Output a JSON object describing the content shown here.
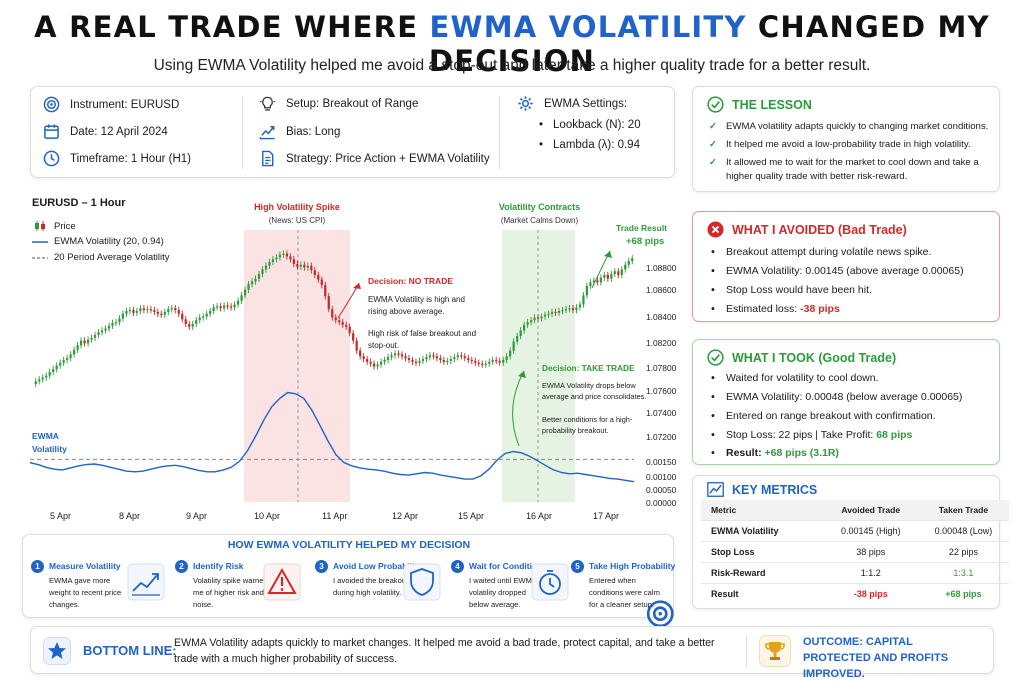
{
  "title": {
    "pre": "A REAL TRADE WHERE ",
    "highlight": "EWMA VOLATILITY",
    "post": " CHANGED MY DECISION"
  },
  "subtitle": "Using EWMA Volatility helped me avoid a stop-out and later take a higher quality trade for a better result.",
  "info": {
    "instrument": "Instrument: EURUSD",
    "date": "Date: 12 April 2024",
    "timeframe": "Timeframe: 1 Hour (H1)",
    "setup": "Setup: Breakout of Range",
    "bias": "Bias: Long",
    "strategy": "Strategy: Price Action + EWMA Volatility",
    "settings_title": "EWMA Settings:",
    "lookback": "Lookback (N): 20",
    "lambda": "Lambda (λ): 0.94"
  },
  "chart": {
    "title": "EURUSD – 1 Hour",
    "legend": {
      "price": "Price",
      "ewma": "EWMA Volatility (20, 0.94)",
      "avg": "20 Period Average Volatility"
    },
    "ewma_side_label": "EWMA Volatility",
    "spike_title": "High Volatility Spike",
    "spike_sub": "(News: US CPI)",
    "contract_title": "Volatility Contracts",
    "contract_sub": "(Market Calms Down)",
    "trade_result_1": "Trade Result",
    "trade_result_2": "+68 pips",
    "no_trade_title": "Decision: NO TRADE",
    "no_trade_text1": "EWMA Volatility is high and rising above average.",
    "no_trade_text2": "High risk of false breakout and stop-out.",
    "take_title": "Decision: TAKE TRADE",
    "take_text1": "EWMA Volatility drops below average and price consolidates.",
    "take_text2": "Better conditions for a high-probability breakout.",
    "x_labels": [
      "5 Apr",
      "8 Apr",
      "9 Apr",
      "10 Apr",
      "11 Apr",
      "12 Apr",
      "15 Apr",
      "16 Apr",
      "17 Apr"
    ],
    "price_labels": [
      "1.08800",
      "1.08600",
      "1.08400",
      "1.08200",
      "1.07800",
      "1.07600",
      "1.07400",
      "1.07200"
    ],
    "vol_labels": [
      "0.00150",
      "0.00100",
      "0.00050",
      "0.00000"
    ]
  },
  "chart_data": {
    "type": "line",
    "title": "EURUSD – 1 Hour",
    "x_ticks": [
      "5 Apr",
      "8 Apr",
      "9 Apr",
      "10 Apr",
      "11 Apr",
      "12 Apr",
      "15 Apr",
      "16 Apr",
      "17 Apr"
    ],
    "price_tick_labels": [
      "1.08800",
      "1.08600",
      "1.08400",
      "1.08200",
      "1.07800",
      "1.07600",
      "1.07400",
      "1.07200"
    ],
    "vol_tick_labels": [
      "0.00150",
      "0.00100",
      "0.00050",
      "0.00000"
    ],
    "series": [
      {
        "name": "Price",
        "kind": "candlestick",
        "close": [
          0.3,
          0.5,
          0.7,
          0.9,
          1.3,
          1.6,
          2.0,
          2.3,
          2.6,
          2.8,
          3.2,
          3.7,
          4.2,
          4.7,
          4.4,
          4.8,
          5.0,
          5.3,
          5.6,
          5.8,
          6.0,
          6.3,
          6.6,
          6.7,
          7.1,
          7.6,
          7.9,
          8.0,
          7.7,
          7.9,
          8.2,
          8.0,
          8.1,
          8.0,
          7.8,
          7.6,
          7.5,
          7.8,
          8.1,
          8.2,
          8.0,
          7.6,
          7.0,
          6.5,
          6.2,
          6.5,
          6.9,
          7.2,
          7.3,
          7.6,
          7.9,
          8.3,
          8.4,
          8.2,
          8.5,
          8.4,
          8.3,
          8.6,
          9.0,
          9.6,
          10.2,
          10.8,
          11.1,
          11.4,
          11.9,
          12.4,
          12.8,
          13.2,
          13.5,
          13.7,
          14.0,
          14.1,
          13.8,
          13.5,
          13.0,
          12.7,
          12.9,
          12.6,
          12.8,
          12.3,
          11.8,
          11.3,
          10.7,
          9.5,
          8.1,
          7.2,
          6.9,
          6.7,
          6.4,
          6.2,
          5.5,
          4.7,
          3.6,
          3.0,
          2.7,
          2.4,
          2.2,
          1.9,
          2.1,
          2.4,
          2.6,
          2.9,
          3.1,
          3.3,
          3.2,
          3.0,
          2.8,
          2.6,
          2.4,
          2.3,
          2.5,
          2.7,
          2.9,
          3.1,
          3.0,
          2.8,
          2.6,
          2.4,
          2.5,
          2.7,
          2.9,
          3.1,
          3.0,
          2.8,
          2.6,
          2.5,
          2.3,
          2.2,
          2.1,
          2.2,
          2.4,
          2.6,
          2.5,
          2.3,
          2.6,
          3.0,
          3.6,
          4.6,
          5.2,
          5.8,
          6.4,
          6.7,
          6.9,
          7.2,
          7.1,
          7.3,
          7.5,
          7.6,
          7.8,
          7.7,
          7.9,
          8.0,
          8.1,
          8.2,
          8.0,
          8.3,
          8.6,
          9.6,
          10.6,
          11.0,
          11.2,
          11.0,
          11.5,
          11.8,
          11.4,
          11.9,
          12.2,
          11.8,
          12.4,
          12.9,
          13.3,
          13.6
        ]
      },
      {
        "name": "EWMA Volatility (20, 0.94)",
        "kind": "line",
        "values": [
          0.0006,
          0.00057,
          0.00053,
          0.0005,
          0.00049,
          0.00052,
          0.00055,
          0.00057,
          0.00058,
          0.00056,
          0.00053,
          0.0005,
          0.00047,
          0.00046,
          0.00047,
          0.0005,
          0.00053,
          0.00055,
          0.00056,
          0.00054,
          0.00051,
          0.00048,
          0.00046,
          0.00046,
          0.00049,
          0.00053,
          0.00062,
          0.00078,
          0.001,
          0.00124,
          0.00145,
          0.00158,
          0.00167,
          0.00165,
          0.00158,
          0.0014,
          0.00117,
          0.00093,
          0.00072,
          0.0006,
          0.00055,
          0.00052,
          0.0005,
          0.00049,
          0.00047,
          0.00044,
          0.00042,
          0.00041,
          0.00043,
          0.00045,
          0.00044,
          0.00041,
          0.00039,
          0.00037,
          0.00035,
          0.00035,
          0.0004,
          0.0005,
          0.00064,
          0.00074,
          0.00077,
          0.00075,
          0.0007,
          0.00063,
          0.00056,
          0.00049,
          0.00045,
          0.00043,
          0.00044,
          0.00042,
          0.0004,
          0.00038,
          0.00036,
          0.00035,
          0.00033,
          0.00031
        ]
      },
      {
        "name": "20 Period Average Volatility",
        "kind": "dashed-line",
        "value": 0.00065
      }
    ],
    "annotations": [
      "High Volatility Spike",
      "(News: US CPI)",
      "Volatility Contracts",
      "(Market Calms Down)",
      "Trade Result",
      "+68 pips",
      "Decision: NO TRADE",
      "Decision: TAKE TRADE"
    ]
  },
  "lesson": {
    "title": "THE LESSON",
    "items": [
      "EWMA volatility adapts quickly to changing market conditions.",
      "It helped me avoid a low-probability trade in high volatility.",
      "It allowed me to wait for the market to cool down and take a higher quality trade with better risk-reward."
    ]
  },
  "avoided": {
    "title": "WHAT I AVOIDED (Bad Trade)",
    "items": [
      "Breakout attempt during volatile news spike.",
      "EWMA Volatility: 0.00145 (above average 0.00065)",
      "Stop Loss would have been hit."
    ],
    "loss_prefix": "Estimated loss: ",
    "loss_value": "-38 pips"
  },
  "took": {
    "title": "WHAT I TOOK (Good Trade)",
    "items": [
      "Waited for volatility to cool down.",
      "EWMA Volatility: 0.00048 (below average 0.00065)",
      "Entered on range breakout with confirmation."
    ],
    "stops_prefix": "Stop Loss: 22 pips | Take Profit: ",
    "stops_tp": "68 pips",
    "result_prefix": "Result: ",
    "result_value": "+68 pips (3.1R)"
  },
  "metrics": {
    "title": "KEY METRICS",
    "headers": [
      "Metric",
      "Avoided Trade",
      "Taken Trade"
    ],
    "rows": [
      [
        "EWMA Volatility",
        "0.00145 (High)",
        "0.00048 (Low)"
      ],
      [
        "Stop Loss",
        "38 pips",
        "22 pips"
      ],
      [
        "Risk-Reward",
        "1:1.2",
        "1:3.1"
      ],
      [
        "Result",
        "-38 pips",
        "+68 pips"
      ]
    ]
  },
  "how": {
    "title": "HOW EWMA VOLATILITY HELPED MY DECISION",
    "steps": [
      {
        "num": "1",
        "title": "Measure Volatility",
        "desc": "EWMA gave more weight to recent price changes."
      },
      {
        "num": "2",
        "title": "Identify Risk",
        "desc": "Volatility spike warned me of higher risk and noise."
      },
      {
        "num": "3",
        "title": "Avoid Low Probability",
        "desc": "I avoided the breakout during high volatility."
      },
      {
        "num": "4",
        "title": "Wait for Conditions",
        "desc": "I waited until EWMA volatility dropped below average."
      },
      {
        "num": "5",
        "title": "Take High Probability",
        "desc": "Entered when conditions were calm for a cleaner setup."
      }
    ]
  },
  "bottom": {
    "label": "BOTTOM LINE:",
    "text": "EWMA Volatility adapts quickly to market changes. It helped me avoid a bad trade, protect capital, and take a better trade with a much higher probability of success.",
    "outcome": "OUTCOME: CAPITAL PROTECTED AND PROFITS IMPROVED."
  },
  "colors": {
    "accent": "#1f63c8",
    "green": "#2e9b3b",
    "red": "#d62828",
    "candle_up": "#2e9b3b",
    "candle_down": "#c62828",
    "spike_zone": "#fbe3e3",
    "calm_zone": "#e5f3e3"
  }
}
